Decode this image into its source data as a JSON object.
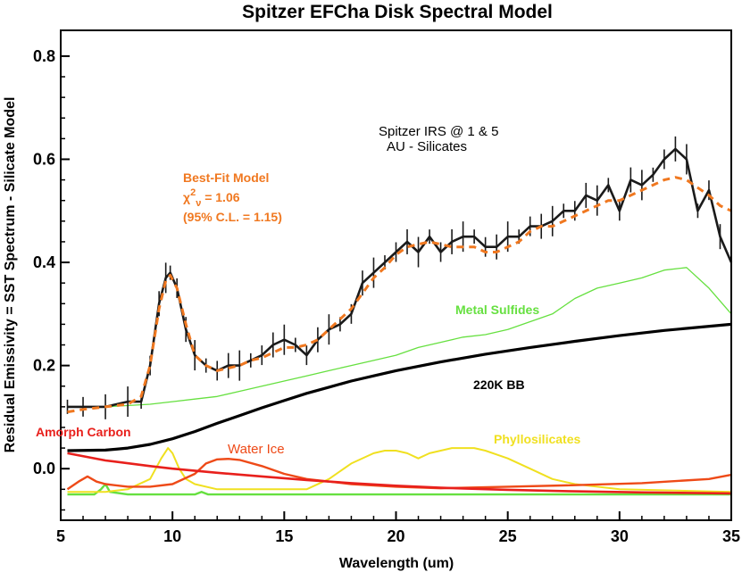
{
  "chart_data": {
    "type": "line",
    "title": "Spitzer EFCha Disk Spectral Model",
    "xlabel": "Wavelength (um)",
    "ylabel": "Residual Emissivity  = SST Spectrum - Silicate Model",
    "xlim": [
      5,
      35
    ],
    "ylim": [
      -0.1,
      0.85
    ],
    "x_ticks": [
      "5",
      "10",
      "15",
      "20",
      "25",
      "30",
      "35"
    ],
    "y_ticks": [
      "0.0",
      "0.2",
      "0.4",
      "0.6",
      "0.8"
    ],
    "grid": false,
    "annotations": {
      "spitzer_line1": "Spitzer IRS @ 1 & 5",
      "spitzer_line2": "AU - Silicates",
      "bestfit_line1": "Best-Fit Model",
      "bestfit_chi": "χ",
      "bestfit_chi_sup": "2",
      "bestfit_chi_sub": "ν",
      "bestfit_chi_val": " = 1.06",
      "bestfit_line3": "(95% C.L. = 1.15)",
      "metal_sulfides": "Metal Sulfides",
      "bb": "220K BB",
      "amorph_carbon": "Amorph Carbon",
      "water_ice": "Water Ice",
      "phyllosilicates": "Phyllosilicates"
    },
    "colors": {
      "data": "#1a1a1a",
      "best_fit": "#f07820",
      "metal_sulfides": "#66e040",
      "bb": "#000000",
      "amorph_carbon": "#e8201c",
      "water_ice": "#ee4a18",
      "phyllosilicates": "#f0e020",
      "green_components": "#66e040"
    },
    "series": [
      {
        "name": "Spitzer IRS data",
        "style": "data",
        "x": [
          5.3,
          6,
          7,
          8,
          8.6,
          9,
          9.4,
          9.7,
          9.9,
          10.2,
          10.6,
          11,
          11.5,
          12,
          12.5,
          13,
          13.5,
          14,
          14.5,
          15,
          15.5,
          16,
          16.5,
          17,
          17.5,
          18,
          18.5,
          19,
          19.5,
          20,
          20.5,
          21,
          21.5,
          22,
          22.5,
          23,
          23.5,
          24,
          24.5,
          25,
          25.5,
          26,
          26.5,
          27,
          27.5,
          28,
          28.5,
          29,
          29.5,
          30,
          30.5,
          31,
          31.5,
          32,
          32.5,
          33,
          33.5,
          34,
          34.5,
          35
        ],
        "y": [
          0.12,
          0.12,
          0.12,
          0.13,
          0.13,
          0.2,
          0.32,
          0.37,
          0.38,
          0.35,
          0.27,
          0.22,
          0.2,
          0.19,
          0.2,
          0.2,
          0.21,
          0.22,
          0.24,
          0.25,
          0.24,
          0.22,
          0.25,
          0.27,
          0.28,
          0.3,
          0.36,
          0.38,
          0.4,
          0.42,
          0.44,
          0.42,
          0.45,
          0.42,
          0.44,
          0.45,
          0.45,
          0.43,
          0.43,
          0.45,
          0.45,
          0.47,
          0.47,
          0.48,
          0.5,
          0.5,
          0.53,
          0.52,
          0.55,
          0.5,
          0.56,
          0.55,
          0.57,
          0.6,
          0.62,
          0.6,
          0.5,
          0.54,
          0.45,
          0.4
        ]
      },
      {
        "name": "Best-Fit Model",
        "style": "dashed",
        "x": [
          5.3,
          6,
          7,
          8,
          8.6,
          9,
          9.4,
          9.7,
          9.9,
          10.2,
          10.6,
          11,
          11.5,
          12,
          12.5,
          13,
          13.5,
          14,
          14.5,
          15,
          15.5,
          16,
          16.5,
          17,
          17.5,
          18,
          18.5,
          19,
          19.5,
          20,
          20.5,
          21,
          21.5,
          22,
          22.5,
          23,
          23.5,
          24,
          24.5,
          25,
          25.5,
          26,
          26.5,
          27,
          27.5,
          28,
          28.5,
          29,
          29.5,
          30,
          30.5,
          31,
          31.5,
          32,
          32.5,
          33,
          33.5,
          34,
          34.5,
          35
        ],
        "y": [
          0.11,
          0.115,
          0.12,
          0.125,
          0.14,
          0.2,
          0.31,
          0.365,
          0.375,
          0.35,
          0.28,
          0.22,
          0.2,
          0.19,
          0.195,
          0.2,
          0.21,
          0.215,
          0.225,
          0.235,
          0.235,
          0.24,
          0.25,
          0.27,
          0.29,
          0.31,
          0.34,
          0.37,
          0.39,
          0.415,
          0.43,
          0.435,
          0.44,
          0.435,
          0.43,
          0.43,
          0.43,
          0.42,
          0.42,
          0.43,
          0.44,
          0.46,
          0.47,
          0.47,
          0.48,
          0.49,
          0.5,
          0.51,
          0.52,
          0.52,
          0.53,
          0.54,
          0.55,
          0.56,
          0.565,
          0.56,
          0.545,
          0.53,
          0.51,
          0.5
        ]
      },
      {
        "name": "Metal Sulfides",
        "style": "thin",
        "x": [
          5.3,
          7,
          9,
          10,
          11,
          12,
          13,
          14,
          15,
          16,
          17,
          18,
          19,
          20,
          21,
          22,
          23,
          24,
          25,
          26,
          27,
          28,
          29,
          30,
          31,
          32,
          33,
          34,
          35
        ],
        "y": [
          0.12,
          0.12,
          0.125,
          0.13,
          0.135,
          0.14,
          0.15,
          0.16,
          0.17,
          0.18,
          0.19,
          0.2,
          0.21,
          0.22,
          0.235,
          0.245,
          0.255,
          0.26,
          0.27,
          0.285,
          0.3,
          0.33,
          0.35,
          0.36,
          0.37,
          0.385,
          0.39,
          0.35,
          0.3
        ]
      },
      {
        "name": "220K BB",
        "style": "thick",
        "x": [
          5.3,
          7,
          8,
          9,
          10,
          11,
          12,
          13,
          14,
          15,
          16,
          17,
          18,
          19,
          20,
          22,
          24,
          26,
          28,
          30,
          32,
          35
        ],
        "y": [
          0.035,
          0.036,
          0.04,
          0.047,
          0.058,
          0.072,
          0.088,
          0.103,
          0.118,
          0.132,
          0.146,
          0.158,
          0.17,
          0.18,
          0.19,
          0.207,
          0.222,
          0.235,
          0.247,
          0.258,
          0.268,
          0.28
        ]
      },
      {
        "name": "Amorph Carbon",
        "style": "red",
        "x": [
          5.3,
          7,
          9,
          10,
          12,
          14,
          16,
          18,
          20,
          22,
          25,
          28,
          31,
          35
        ],
        "y": [
          0.03,
          0.016,
          0.005,
          0.0,
          -0.008,
          -0.015,
          -0.022,
          -0.028,
          -0.033,
          -0.037,
          -0.041,
          -0.044,
          -0.046,
          -0.048
        ]
      },
      {
        "name": "Water Ice",
        "style": "red-orange",
        "x": [
          5.3,
          5.8,
          6.2,
          6.6,
          7,
          8,
          9,
          10,
          11,
          11.5,
          12,
          12.5,
          13,
          14,
          15,
          16,
          18,
          20,
          22,
          25,
          28,
          31,
          34,
          35
        ],
        "y": [
          -0.04,
          -0.025,
          -0.015,
          -0.025,
          -0.03,
          -0.035,
          -0.035,
          -0.03,
          -0.01,
          0.01,
          0.018,
          0.019,
          0.017,
          0.005,
          -0.01,
          -0.02,
          -0.03,
          -0.035,
          -0.038,
          -0.035,
          -0.032,
          -0.028,
          -0.02,
          -0.012
        ]
      },
      {
        "name": "Phyllosilicates",
        "style": "yellow",
        "x": [
          5.3,
          7,
          8,
          9,
          9.5,
          9.8,
          10,
          10.3,
          10.6,
          11,
          12,
          14,
          16,
          17,
          18,
          19,
          19.5,
          20,
          20.5,
          21,
          21.5,
          22,
          22.5,
          23,
          23.5,
          24,
          25,
          26,
          27,
          28,
          30,
          35
        ],
        "y": [
          -0.045,
          -0.045,
          -0.04,
          -0.02,
          0.02,
          0.04,
          0.03,
          0.0,
          -0.02,
          -0.03,
          -0.04,
          -0.04,
          -0.04,
          -0.02,
          0.01,
          0.03,
          0.035,
          0.035,
          0.03,
          0.02,
          0.03,
          0.035,
          0.04,
          0.04,
          0.04,
          0.035,
          0.02,
          0.0,
          -0.02,
          -0.03,
          -0.04,
          -0.045
        ]
      },
      {
        "name": "Green components",
        "style": "green",
        "x": [
          5.3,
          6.5,
          6.8,
          7,
          7.2,
          8,
          9,
          10,
          11,
          11.3,
          11.6,
          12,
          15,
          20,
          25,
          30,
          35
        ],
        "y": [
          -0.05,
          -0.05,
          -0.04,
          -0.03,
          -0.045,
          -0.05,
          -0.05,
          -0.05,
          -0.05,
          -0.045,
          -0.05,
          -0.05,
          -0.05,
          -0.05,
          -0.05,
          -0.05,
          -0.05
        ]
      }
    ]
  }
}
